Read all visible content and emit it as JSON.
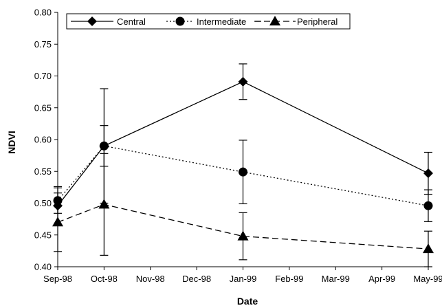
{
  "chart_data": {
    "type": "line",
    "xlabel": "Date",
    "ylabel": "NDVI",
    "categories": [
      "Sep-98",
      "Oct-98",
      "Nov-98",
      "Dec-98",
      "Jan-99",
      "Feb-99",
      "Mar-99",
      "Apr-99",
      "May-99"
    ],
    "ylim": [
      0.4,
      0.8
    ],
    "yticks": [
      "0.80",
      "0.75",
      "0.70",
      "0.65",
      "0.60",
      "0.55",
      "0.50",
      "0.45",
      "0.40"
    ],
    "grid": false,
    "legend_position": "top",
    "series": [
      {
        "name": "Central",
        "style": "solid",
        "marker": "diamond",
        "x": [
          "Sep-98",
          "Oct-98",
          "Jan-99",
          "May-99"
        ],
        "values": [
          0.496,
          0.59,
          0.691,
          0.547
        ],
        "errors": [
          0.03,
          0.09,
          0.028,
          0.033
        ]
      },
      {
        "name": "Intermediate",
        "style": "dotted",
        "marker": "circle",
        "x": [
          "Sep-98",
          "Oct-98",
          "Jan-99",
          "May-99"
        ],
        "values": [
          0.504,
          0.59,
          0.549,
          0.496
        ],
        "errors": [
          0.02,
          0.032,
          0.05,
          0.025
        ]
      },
      {
        "name": "Peripheral",
        "style": "dashed",
        "marker": "triangle",
        "x": [
          "Sep-98",
          "Oct-98",
          "Jan-99",
          "May-99"
        ],
        "values": [
          0.47,
          0.498,
          0.448,
          0.428
        ],
        "errors": [
          0.046,
          0.08,
          0.037,
          0.028
        ]
      }
    ]
  }
}
